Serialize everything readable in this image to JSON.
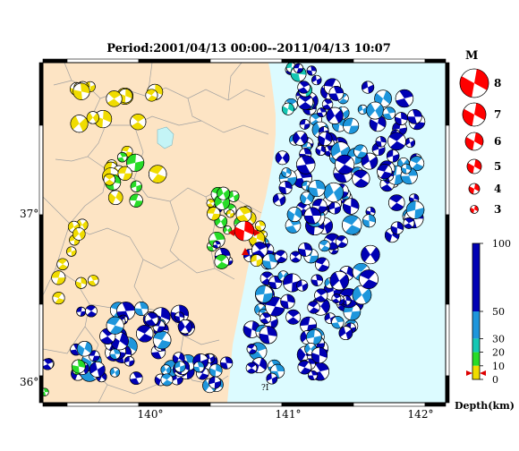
{
  "title": "Period:2001/04/13 00:00--2011/04/13 10:07",
  "map": {
    "lat_labels": [
      "37°",
      "36°"
    ],
    "lon_labels": [
      "140°",
      "141°",
      "142°"
    ],
    "place_label": "?I",
    "colors": {
      "land": "#fde4c4",
      "sea": "#dcfbff",
      "boundary": "#a0a0a0",
      "lake": "#c4f4f6",
      "frame_dark": "#000000",
      "frame_light": "#ffffff"
    }
  },
  "magnitude_legend": {
    "title": "M",
    "items": [
      {
        "label": "8",
        "magnitude": 8
      },
      {
        "label": "7",
        "magnitude": 7
      },
      {
        "label": "6",
        "magnitude": 6
      },
      {
        "label": "5",
        "magnitude": 5
      },
      {
        "label": "4",
        "magnitude": 4
      },
      {
        "label": "3",
        "magnitude": 3
      }
    ]
  },
  "depth_legend": {
    "title": "Depth(km)",
    "ticks": [
      "100",
      "50",
      "30",
      "20",
      "10",
      "0"
    ],
    "bands": [
      {
        "from_km": 50,
        "to_km": 100,
        "color": "#0000b4"
      },
      {
        "from_km": 30,
        "to_km": 50,
        "color": "#1e96dc"
      },
      {
        "from_km": 20,
        "to_km": 30,
        "color": "#14c8b4"
      },
      {
        "from_km": 10,
        "to_km": 20,
        "color": "#28dc28"
      },
      {
        "from_km": 0,
        "to_km": 10,
        "color": "#f0dc00"
      }
    ]
  },
  "mechanism_colors": {
    "deep": "#0000b4",
    "intermediate": "#1e96dc",
    "mid": "#14c8b4",
    "shallow_mid": "#28dc28",
    "shallow": "#f0dc00",
    "main_shock": "#ff0000",
    "legend": "#ff0000"
  }
}
